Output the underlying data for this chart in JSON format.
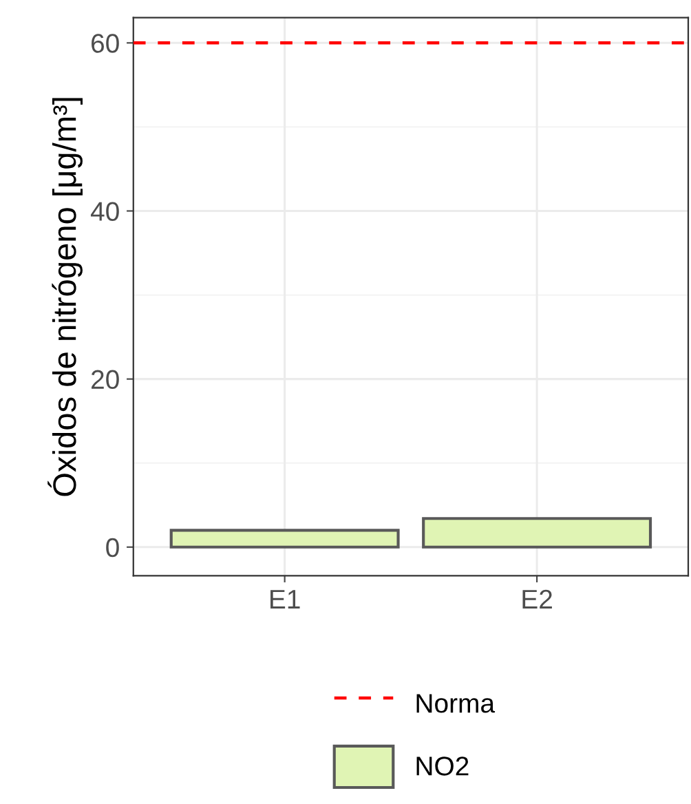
{
  "chart_data": {
    "type": "bar",
    "ylabel": "Óxidos de nitrógeno [μg/m³]",
    "categories": [
      "E1",
      "E2"
    ],
    "series": [
      {
        "name": "NO2",
        "color": "#e0f4b4",
        "values": [
          2.0,
          3.4
        ]
      }
    ],
    "ylim": [
      -3.4,
      63
    ],
    "yticks": [
      0,
      20,
      40,
      60
    ],
    "grid": true,
    "legend": "bottom",
    "ref_lines": [
      {
        "axis": "y",
        "value": 60,
        "label": "Norma",
        "color": "#ff0000",
        "line_style": "dashed"
      }
    ]
  }
}
